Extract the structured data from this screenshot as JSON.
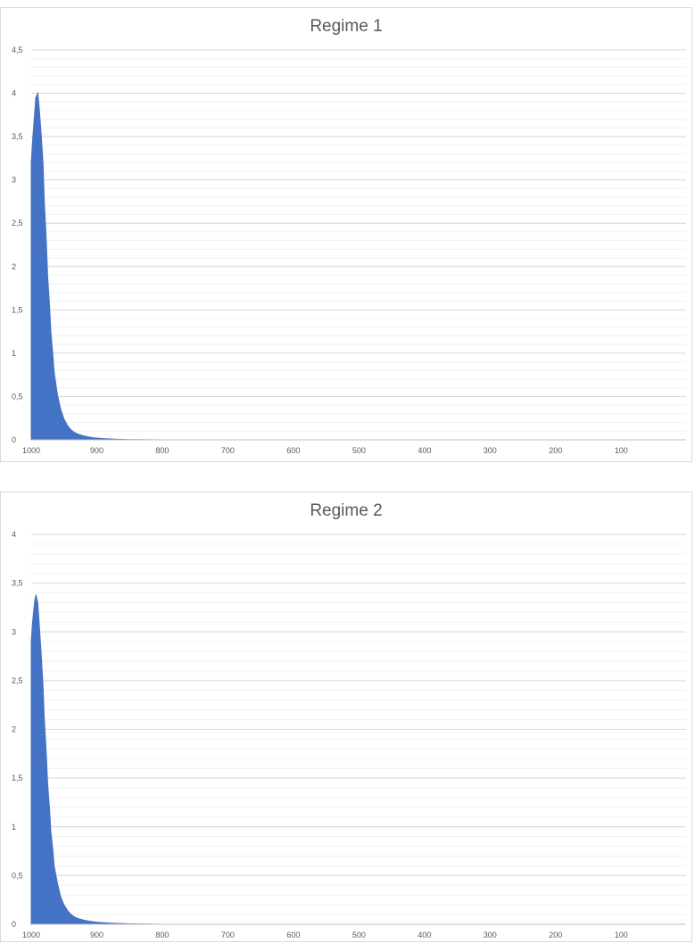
{
  "chart_data": [
    {
      "type": "area",
      "title": "Regime 1",
      "xlabel": "",
      "ylabel": "",
      "x_reversed": true,
      "xlim": [
        1000,
        1
      ],
      "ylim": [
        0,
        4.5
      ],
      "y_ticks": [
        "0",
        "0,5",
        "1",
        "1,5",
        "2",
        "2,5",
        "3",
        "3,5",
        "4",
        "4,5"
      ],
      "y_tick_values": [
        0,
        0.5,
        1,
        1.5,
        2,
        2.5,
        3,
        3.5,
        4,
        4.5
      ],
      "x_ticks": [
        "1000",
        "900",
        "800",
        "700",
        "600",
        "500",
        "400",
        "300",
        "200",
        "100"
      ],
      "x_tick_values": [
        1000,
        900,
        800,
        700,
        600,
        500,
        400,
        300,
        200,
        100
      ],
      "grid": true,
      "minor_grid": true,
      "legend": "none",
      "series": [
        {
          "color": "#4472c4",
          "x": [
            1000,
            998,
            995,
            993,
            990,
            988,
            985,
            982,
            980,
            977,
            975,
            972,
            970,
            967,
            965,
            960,
            955,
            950,
            945,
            940,
            935,
            930,
            920,
            910,
            900,
            890,
            880,
            870,
            860,
            850,
            840,
            800,
            700,
            600,
            500,
            400,
            300,
            200,
            100,
            1
          ],
          "values": [
            3.2,
            3.45,
            3.75,
            3.95,
            4.0,
            3.85,
            3.55,
            3.2,
            2.75,
            2.3,
            1.9,
            1.55,
            1.25,
            0.98,
            0.78,
            0.52,
            0.35,
            0.24,
            0.17,
            0.12,
            0.09,
            0.07,
            0.045,
            0.03,
            0.02,
            0.014,
            0.01,
            0.007,
            0.005,
            0.003,
            0.002,
            0.0,
            0.0,
            0.0,
            0.0,
            0.0,
            0.0,
            0.0,
            0.0,
            0.0
          ]
        }
      ]
    },
    {
      "type": "area",
      "title": "Regime 2",
      "xlabel": "",
      "ylabel": "",
      "x_reversed": true,
      "xlim": [
        1000,
        1
      ],
      "ylim": [
        0,
        4
      ],
      "y_ticks": [
        "0",
        "0,5",
        "1",
        "1,5",
        "2",
        "2,5",
        "3",
        "3,5",
        "4"
      ],
      "y_tick_values": [
        0,
        0.5,
        1,
        1.5,
        2,
        2.5,
        3,
        3.5,
        4
      ],
      "x_ticks": [
        "1000",
        "900",
        "800",
        "700",
        "600",
        "500",
        "400",
        "300",
        "200",
        "100"
      ],
      "x_tick_values": [
        1000,
        900,
        800,
        700,
        600,
        500,
        400,
        300,
        200,
        100
      ],
      "grid": true,
      "minor_grid": true,
      "legend": "none",
      "series": [
        {
          "color": "#4472c4",
          "x": [
            1000,
            998,
            995,
            993,
            990,
            988,
            985,
            982,
            980,
            977,
            975,
            972,
            970,
            967,
            965,
            960,
            955,
            950,
            945,
            940,
            935,
            930,
            920,
            910,
            900,
            890,
            880,
            870,
            860,
            850,
            840,
            800,
            700,
            600,
            500,
            400,
            300,
            200,
            100,
            1
          ],
          "values": [
            2.9,
            3.1,
            3.3,
            3.38,
            3.3,
            3.1,
            2.8,
            2.45,
            2.1,
            1.75,
            1.45,
            1.18,
            0.95,
            0.76,
            0.6,
            0.42,
            0.28,
            0.2,
            0.145,
            0.105,
            0.08,
            0.062,
            0.042,
            0.03,
            0.022,
            0.016,
            0.012,
            0.009,
            0.007,
            0.005,
            0.003,
            0.0,
            0.0,
            0.0,
            0.0,
            0.0,
            0.0,
            0.0,
            0.0,
            0.0
          ]
        }
      ]
    }
  ]
}
